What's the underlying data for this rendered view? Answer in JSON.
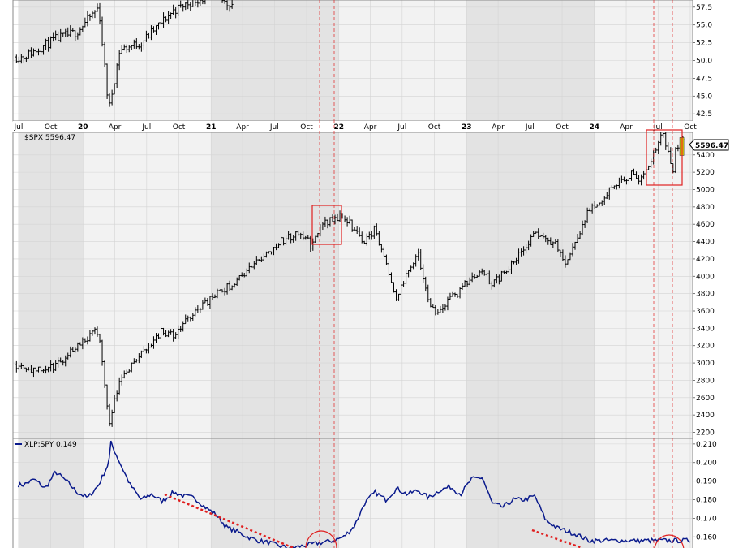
{
  "colors": {
    "price_bars": "#000000",
    "ratio_line": "#0a1a8c",
    "annotation_red": "#e02020",
    "current_bar_highlight": "#e8e000",
    "panel_bg_light": "#f2f2f2",
    "panel_bg_dark": "#e3e3e3"
  },
  "x_axis": {
    "ticks": [
      "Jul",
      "Oct",
      "20",
      "Apr",
      "Jul",
      "Oct",
      "21",
      "Apr",
      "Jul",
      "Oct",
      "22",
      "Apr",
      "Jul",
      "Oct",
      "23",
      "Apr",
      "Jul",
      "Oct",
      "24",
      "Apr",
      "Jul",
      "Oct"
    ],
    "bold_ticks": [
      "20",
      "21",
      "22",
      "23",
      "24"
    ]
  },
  "chart_data": [
    {
      "type": "ohlc",
      "panel": "top",
      "y_ticks": [
        "57.5",
        "55.0",
        "52.5",
        "50.0",
        "47.5",
        "45.0",
        "42.5"
      ],
      "ylim": [
        41.5,
        58.5
      ],
      "series": [
        {
          "x": [
            "2019-07",
            "2019-10",
            "2019-12",
            "2020-02",
            "2020-03",
            "2020-04",
            "2020-06",
            "2020-09",
            "2020-11",
            "2021-01",
            "2021-02",
            "2021-03"
          ],
          "y": [
            50.5,
            53.0,
            54.0,
            57.5,
            43.0,
            51.5,
            52.5,
            57.0,
            58.5,
            59.0,
            58.0,
            58.0
          ]
        }
      ]
    },
    {
      "type": "ohlc",
      "panel": "middle",
      "title": "$SPX 5596.47",
      "last_value": "5596.47",
      "y_ticks": [
        "5400",
        "5200",
        "5000",
        "4800",
        "4600",
        "4400",
        "4200",
        "4000",
        "3800",
        "3600",
        "3400",
        "3200",
        "3000",
        "2800",
        "2600",
        "2400",
        "2200"
      ],
      "ylim": [
        2130,
        5660
      ],
      "series": [
        {
          "name": "$SPX",
          "x": [
            "2019-07",
            "2019-08",
            "2019-10",
            "2019-12",
            "2020-02",
            "2020-03",
            "2020-04",
            "2020-06",
            "2020-08",
            "2020-09",
            "2020-11",
            "2021-01",
            "2021-03",
            "2021-05",
            "2021-07",
            "2021-09",
            "2021-10",
            "2021-11",
            "2022-01",
            "2022-03",
            "2022-04",
            "2022-06",
            "2022-08",
            "2022-09",
            "2022-10",
            "2022-12",
            "2023-02",
            "2023-03",
            "2023-05",
            "2023-07",
            "2023-09",
            "2023-10",
            "2023-12",
            "2024-02",
            "2024-04",
            "2024-05",
            "2024-07",
            "2024-08",
            "2024-08-15",
            "2024-09"
          ],
          "y": [
            2980,
            2900,
            2960,
            3220,
            3380,
            2300,
            2830,
            3100,
            3380,
            3300,
            3600,
            3780,
            3950,
            4180,
            4400,
            4500,
            4350,
            4600,
            4700,
            4400,
            4550,
            3750,
            4300,
            3650,
            3600,
            3850,
            4100,
            3900,
            4150,
            4500,
            4350,
            4150,
            4750,
            5000,
            5180,
            5100,
            5650,
            5200,
            5450,
            5600
          ]
        }
      ]
    },
    {
      "type": "line",
      "panel": "bottom",
      "title": "XLP:SPY 0.149",
      "y_ticks": [
        "0.210",
        "0.200",
        "0.190",
        "0.180",
        "0.170",
        "0.160"
      ],
      "ylim": [
        0.154,
        0.213
      ],
      "series": [
        {
          "name": "XLP:SPY",
          "x": [
            "2019-07",
            "2019-08",
            "2019-09",
            "2019-10",
            "2019-11",
            "2019-12",
            "2020-01",
            "2020-02",
            "2020-03",
            "2020-03-20",
            "2020-04",
            "2020-05",
            "2020-06",
            "2020-07",
            "2020-08",
            "2020-09",
            "2020-10",
            "2020-11",
            "2020-12",
            "2021-01",
            "2021-02",
            "2021-03",
            "2021-04",
            "2021-05",
            "2021-06",
            "2021-07",
            "2021-08",
            "2021-09",
            "2021-10",
            "2021-11",
            "2021-12",
            "2022-01",
            "2022-02",
            "2022-03",
            "2022-04",
            "2022-05",
            "2022-06",
            "2022-07",
            "2022-08",
            "2022-09",
            "2022-10",
            "2022-11",
            "2022-12",
            "2023-01",
            "2023-02",
            "2023-03",
            "2023-04",
            "2023-05",
            "2023-06",
            "2023-07",
            "2023-08",
            "2023-09",
            "2023-10",
            "2023-11",
            "2023-12"
          ],
          "y": [
            0.188,
            0.191,
            0.186,
            0.195,
            0.19,
            0.184,
            0.181,
            0.188,
            0.2,
            0.211,
            0.2,
            0.188,
            0.18,
            0.183,
            0.179,
            0.184,
            0.182,
            0.181,
            0.176,
            0.172,
            0.165,
            0.163,
            0.16,
            0.158,
            0.157,
            0.155,
            0.154,
            0.155,
            0.156,
            0.157,
            0.158,
            0.16,
            0.166,
            0.178,
            0.184,
            0.18,
            0.186,
            0.183,
            0.185,
            0.181,
            0.185,
            0.187,
            0.183,
            0.191,
            0.192,
            0.178,
            0.176,
            0.18,
            0.18,
            0.182,
            0.169,
            0.165,
            0.163,
            0.161,
            0.158
          ]
        }
      ]
    }
  ]
}
